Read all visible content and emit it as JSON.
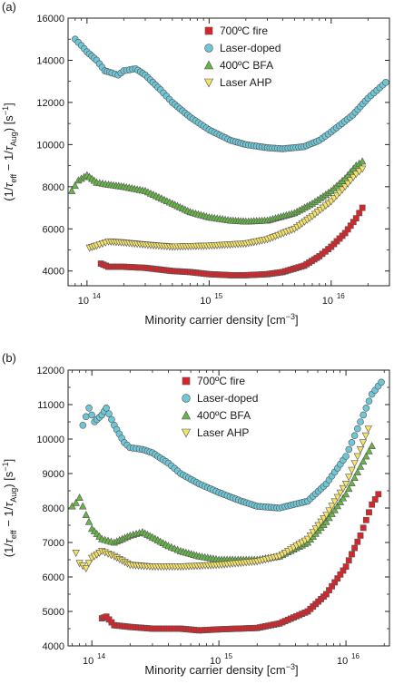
{
  "chart_data": [
    {
      "type": "scatter",
      "panel_label": "(a)",
      "xlabel_text": "Minority carrier density [cm",
      "xlabel_unit_exp": "−3",
      "xlabel_close": "]",
      "ylabel": "(1/τ_eff − 1/τ_Aug) [s^−1]",
      "x_scale": "log",
      "xlim": [
        70000000000000.0,
        3e+16
      ],
      "ylim": [
        3300,
        16000
      ],
      "yticks": [
        4000,
        6000,
        8000,
        10000,
        12000,
        14000,
        16000
      ],
      "xticks_decades": [
        14,
        15,
        16
      ],
      "grid": false,
      "legend_position": "top-right",
      "series": [
        {
          "name": "700ºC fire",
          "marker": "square",
          "color": "#d7262b",
          "points": [
            [
              130000000000000.0,
              4350
            ],
            [
              150000000000000.0,
              4200
            ],
            [
              200000000000000.0,
              4200
            ],
            [
              300000000000000.0,
              4150
            ],
            [
              500000000000000.0,
              4000
            ],
            [
              700000000000000.0,
              3950
            ],
            [
              1000000000000000.0,
              3850
            ],
            [
              1500000000000000.0,
              3800
            ],
            [
              2000000000000000.0,
              3800
            ],
            [
              3000000000000000.0,
              3850
            ],
            [
              4000000000000000.0,
              3950
            ],
            [
              6000000000000000.0,
              4250
            ],
            [
              8000000000000000.0,
              4700
            ],
            [
              1e+16,
              5150
            ],
            [
              1.3e+16,
              5800
            ],
            [
              1.6e+16,
              6500
            ],
            [
              1.8e+16,
              7000
            ]
          ]
        },
        {
          "name": "Laser-doped",
          "marker": "circle",
          "color": "#6fc6d6",
          "points": [
            [
              80000000000000.0,
              15000
            ],
            [
              90000000000000.0,
              14700
            ],
            [
              100000000000000.0,
              14400
            ],
            [
              120000000000000.0,
              14000
            ],
            [
              140000000000000.0,
              13500
            ],
            [
              160000000000000.0,
              13400
            ],
            [
              180000000000000.0,
              13300
            ],
            [
              200000000000000.0,
              13500
            ],
            [
              250000000000000.0,
              13600
            ],
            [
              300000000000000.0,
              13300
            ],
            [
              400000000000000.0,
              12600
            ],
            [
              500000000000000.0,
              12000
            ],
            [
              700000000000000.0,
              11300
            ],
            [
              1000000000000000.0,
              10700
            ],
            [
              1500000000000000.0,
              10200
            ],
            [
              2000000000000000.0,
              10000
            ],
            [
              3000000000000000.0,
              9850
            ],
            [
              4000000000000000.0,
              9800
            ],
            [
              6000000000000000.0,
              9900
            ],
            [
              8000000000000000.0,
              10200
            ],
            [
              1e+16,
              10600
            ],
            [
              1.5e+16,
              11400
            ],
            [
              2e+16,
              12200
            ],
            [
              2.5e+16,
              12700
            ],
            [
              2.8e+16,
              12950
            ]
          ]
        },
        {
          "name": "400ºC BFA",
          "marker": "triangle-up",
          "color": "#67b548",
          "points": [
            [
              75000000000000.0,
              7800
            ],
            [
              85000000000000.0,
              8300
            ],
            [
              100000000000000.0,
              8550
            ],
            [
              120000000000000.0,
              8200
            ],
            [
              150000000000000.0,
              8100
            ],
            [
              200000000000000.0,
              8000
            ],
            [
              300000000000000.0,
              7800
            ],
            [
              500000000000000.0,
              7200
            ],
            [
              700000000000000.0,
              6800
            ],
            [
              1000000000000000.0,
              6550
            ],
            [
              1500000000000000.0,
              6400
            ],
            [
              2000000000000000.0,
              6350
            ],
            [
              3000000000000000.0,
              6400
            ],
            [
              5000000000000000.0,
              6750
            ],
            [
              7000000000000000.0,
              7200
            ],
            [
              1e+16,
              7800
            ],
            [
              1.3e+16,
              8400
            ],
            [
              1.6e+16,
              9000
            ],
            [
              1.8e+16,
              9200
            ]
          ]
        },
        {
          "name": "Laser AHP",
          "marker": "triangle-down",
          "color": "#f3e36a",
          "points": [
            [
              105000000000000.0,
              5100
            ],
            [
              120000000000000.0,
              5200
            ],
            [
              150000000000000.0,
              5400
            ],
            [
              200000000000000.0,
              5350
            ],
            [
              300000000000000.0,
              5250
            ],
            [
              500000000000000.0,
              5150
            ],
            [
              1000000000000000.0,
              5200
            ],
            [
              2000000000000000.0,
              5300
            ],
            [
              3000000000000000.0,
              5500
            ],
            [
              5000000000000000.0,
              6000
            ],
            [
              7000000000000000.0,
              6600
            ],
            [
              1e+16,
              7300
            ],
            [
              1.3e+16,
              8000
            ],
            [
              1.6e+16,
              8600
            ],
            [
              1.8e+16,
              8850
            ]
          ]
        }
      ]
    },
    {
      "type": "scatter",
      "panel_label": "(b)",
      "xlabel_text": "Minority carrier density [cm",
      "xlabel_unit_exp": "−3",
      "xlabel_close": "]",
      "ylabel": "(1/τ_eff − 1/τ_Aug) [s^−1]",
      "x_scale": "log",
      "xlim": [
        65000000000000.0,
        2.2e+16
      ],
      "ylim": [
        4000,
        12000
      ],
      "yticks": [
        4000,
        5000,
        6000,
        7000,
        8000,
        9000,
        10000,
        11000,
        12000
      ],
      "xticks_decades": [
        14,
        15,
        16
      ],
      "grid": false,
      "legend_position": "top-right",
      "series": [
        {
          "name": "700ºC fire",
          "marker": "square",
          "color": "#d7262b",
          "points": [
            [
              120000000000000.0,
              4800
            ],
            [
              130000000000000.0,
              4850
            ],
            [
              150000000000000.0,
              4600
            ],
            [
              200000000000000.0,
              4550
            ],
            [
              300000000000000.0,
              4500
            ],
            [
              500000000000000.0,
              4500
            ],
            [
              700000000000000.0,
              4450
            ],
            [
              1000000000000000.0,
              4480
            ],
            [
              2000000000000000.0,
              4520
            ],
            [
              3000000000000000.0,
              4650
            ],
            [
              5000000000000000.0,
              5000
            ],
            [
              7000000000000000.0,
              5500
            ],
            [
              1e+16,
              6300
            ],
            [
              1.3e+16,
              7200
            ],
            [
              1.6e+16,
              8100
            ],
            [
              1.8e+16,
              8400
            ]
          ]
        },
        {
          "name": "Laser-doped",
          "marker": "circle",
          "color": "#6fc6d6",
          "points": [
            [
              85000000000000.0,
              10400
            ],
            [
              95000000000000.0,
              10900
            ],
            [
              105000000000000.0,
              10500
            ],
            [
              120000000000000.0,
              10700
            ],
            [
              130000000000000.0,
              10900
            ],
            [
              150000000000000.0,
              10400
            ],
            [
              180000000000000.0,
              9900
            ],
            [
              200000000000000.0,
              9750
            ],
            [
              250000000000000.0,
              9700
            ],
            [
              300000000000000.0,
              9600
            ],
            [
              400000000000000.0,
              9300
            ],
            [
              500000000000000.0,
              9000
            ],
            [
              700000000000000.0,
              8700
            ],
            [
              1000000000000000.0,
              8450
            ],
            [
              1500000000000000.0,
              8200
            ],
            [
              2000000000000000.0,
              8050
            ],
            [
              3000000000000000.0,
              8000
            ],
            [
              5000000000000000.0,
              8200
            ],
            [
              7000000000000000.0,
              8700
            ],
            [
              1e+16,
              9500
            ],
            [
              1.3e+16,
              10500
            ],
            [
              1.6e+16,
              11300
            ],
            [
              1.9e+16,
              11650
            ]
          ]
        },
        {
          "name": "400ºC BFA",
          "marker": "triangle-up",
          "color": "#67b548",
          "points": [
            [
              70000000000000.0,
              8050
            ],
            [
              75000000000000.0,
              8150
            ],
            [
              80000000000000.0,
              8300
            ],
            [
              90000000000000.0,
              7800
            ],
            [
              100000000000000.0,
              7400
            ],
            [
              120000000000000.0,
              7100
            ],
            [
              150000000000000.0,
              7000
            ],
            [
              200000000000000.0,
              7200
            ],
            [
              250000000000000.0,
              7300
            ],
            [
              300000000000000.0,
              7150
            ],
            [
              400000000000000.0,
              6900
            ],
            [
              500000000000000.0,
              6750
            ],
            [
              700000000000000.0,
              6600
            ],
            [
              1000000000000000.0,
              6500
            ],
            [
              2000000000000000.0,
              6500
            ],
            [
              3000000000000000.0,
              6600
            ],
            [
              5000000000000000.0,
              7000
            ],
            [
              7000000000000000.0,
              7600
            ],
            [
              1e+16,
              8400
            ],
            [
              1.3e+16,
              9200
            ],
            [
              1.6e+16,
              9800
            ]
          ]
        },
        {
          "name": "Laser AHP",
          "marker": "triangle-down",
          "color": "#f3e36a",
          "points": [
            [
              75000000000000.0,
              6700
            ],
            [
              80000000000000.0,
              6400
            ],
            [
              90000000000000.0,
              6250
            ],
            [
              100000000000000.0,
              6550
            ],
            [
              120000000000000.0,
              6750
            ],
            [
              150000000000000.0,
              6600
            ],
            [
              200000000000000.0,
              6350
            ],
            [
              300000000000000.0,
              6300
            ],
            [
              500000000000000.0,
              6300
            ],
            [
              1000000000000000.0,
              6350
            ],
            [
              2000000000000000.0,
              6450
            ],
            [
              3000000000000000.0,
              6600
            ],
            [
              5000000000000000.0,
              7100
            ],
            [
              7000000000000000.0,
              7800
            ],
            [
              1e+16,
              8700
            ],
            [
              1.3e+16,
              9700
            ],
            [
              1.5e+16,
              10300
            ]
          ]
        }
      ]
    }
  ]
}
